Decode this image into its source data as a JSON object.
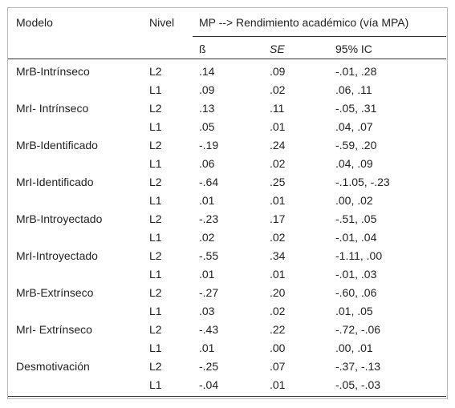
{
  "table": {
    "header": {
      "model": "Modelo",
      "level": "Nivel",
      "span": "MP --> Rendimiento académico (vía MPA)"
    },
    "subheader": {
      "beta": "ß",
      "se": "SE",
      "ci": "95% IC"
    },
    "groups": [
      {
        "model": "MrB-Intrínseco",
        "rows": [
          [
            "L2",
            ".14",
            ".09",
            "-.01, .28"
          ],
          [
            "L1",
            ".09",
            ".02",
            ".06, .11"
          ]
        ]
      },
      {
        "model": "MrI- Intrínseco",
        "rows": [
          [
            "L2",
            ".13",
            ".11",
            "-.05, .31"
          ],
          [
            "L1",
            ".05",
            ".01",
            ".04, .07"
          ]
        ]
      },
      {
        "model": "MrB-Identificado",
        "rows": [
          [
            "L2",
            "-.19",
            ".24",
            "-.59, .20"
          ],
          [
            "L1",
            ".06",
            ".02",
            ".04, .09"
          ]
        ]
      },
      {
        "model": "MrI-Identificado",
        "rows": [
          [
            "L2",
            "-.64",
            ".25",
            "-.1.05, -.23"
          ],
          [
            "L1",
            ".01",
            ".01",
            ".00, .02"
          ]
        ]
      },
      {
        "model": "MrB-Introyectado",
        "rows": [
          [
            "L2",
            "-.23",
            ".17",
            "-.51, .05"
          ],
          [
            "L1",
            ".02",
            ".02",
            "-.01, .04"
          ]
        ]
      },
      {
        "model": "MrI-Introyectado",
        "rows": [
          [
            "L2",
            "-.55",
            ".34",
            "-1.11, .00"
          ],
          [
            "L1",
            ".01",
            ".01",
            "-.01, .03"
          ]
        ]
      },
      {
        "model": "MrB-Extrínseco",
        "rows": [
          [
            "L2",
            "-.27",
            ".20",
            "-.60, .06"
          ],
          [
            "L1",
            ".03",
            ".02",
            ".01, .05"
          ]
        ]
      },
      {
        "model": "MrI- Extrínseco",
        "rows": [
          [
            "L2",
            "-.43",
            ".22",
            "-.72, -.06"
          ],
          [
            "L1",
            ".01",
            ".00",
            ".00, .01"
          ]
        ]
      },
      {
        "model": "Desmotivación",
        "rows": [
          [
            "L2",
            "-.25",
            ".07",
            "-.37, -.13"
          ],
          [
            "L1",
            "-.04",
            ".01",
            "-.05, -.03"
          ]
        ]
      }
    ]
  }
}
